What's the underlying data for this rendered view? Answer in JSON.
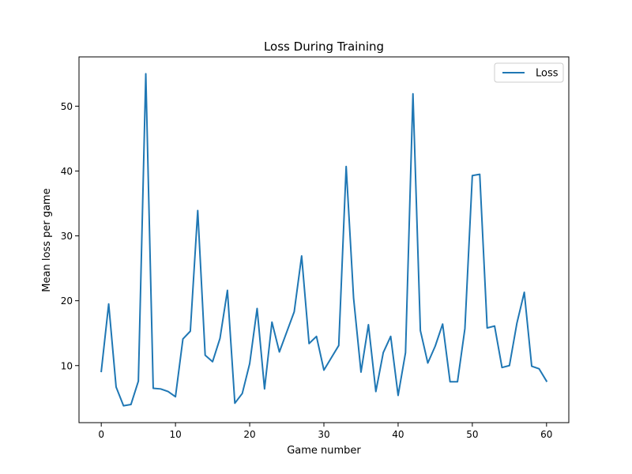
{
  "chart_data": {
    "type": "line",
    "title": "Loss During Training",
    "xlabel": "Game number",
    "ylabel": "Mean loss per game",
    "xlim": [
      -3,
      63
    ],
    "ylim": [
      1.2,
      57.6
    ],
    "xticks": [
      0,
      10,
      20,
      30,
      40,
      50,
      60
    ],
    "yticks": [
      10,
      20,
      30,
      40,
      50
    ],
    "grid": false,
    "legend_position": "top-right",
    "series": [
      {
        "name": "Loss",
        "color": "#1f77b4",
        "x": [
          0,
          1,
          2,
          3,
          4,
          5,
          6,
          7,
          8,
          9,
          10,
          11,
          12,
          13,
          14,
          15,
          16,
          17,
          18,
          19,
          20,
          21,
          22,
          23,
          24,
          25,
          26,
          27,
          28,
          29,
          30,
          31,
          32,
          33,
          34,
          35,
          36,
          37,
          38,
          39,
          40,
          41,
          42,
          43,
          44,
          45,
          46,
          47,
          48,
          49,
          50,
          51,
          52,
          53,
          54,
          55,
          56,
          57,
          58,
          59,
          60
        ],
        "values": [
          9.1,
          19.5,
          6.7,
          3.8,
          4.0,
          7.6,
          55.0,
          6.5,
          6.4,
          6.0,
          5.2,
          14.1,
          15.3,
          33.9,
          11.6,
          10.6,
          14.2,
          21.6,
          4.2,
          5.7,
          10.3,
          18.8,
          6.4,
          16.7,
          12.1,
          15.2,
          18.3,
          26.9,
          13.4,
          14.5,
          9.3,
          11.2,
          13.1,
          40.7,
          20.4,
          9.0,
          16.3,
          6.0,
          12.0,
          14.5,
          5.4,
          12.0,
          51.9,
          15.4,
          10.4,
          13.0,
          16.4,
          7.5,
          7.5,
          15.7,
          39.3,
          39.5,
          15.8,
          16.1,
          9.7,
          10.0,
          16.5,
          21.3,
          9.9,
          9.5,
          7.6
        ]
      }
    ]
  }
}
